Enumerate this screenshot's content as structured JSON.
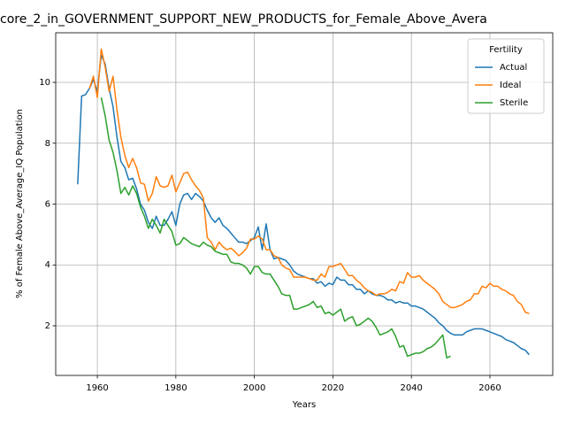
{
  "chart_data": {
    "type": "line",
    "title": "core_2_in_GOVERNMENT_SUPPORT_NEW_PRODUCTS_for_Female_Above_Avera",
    "xlabel": "Years",
    "ylabel": "% of Female Above_Average_IQ Population",
    "legend_title": "Fertility",
    "legend": "upper right",
    "grid": true,
    "xlim": [
      1949.4,
      2076
    ],
    "ylim": [
      0.37,
      11.63
    ],
    "xticks": [
      1960,
      1980,
      2000,
      2020,
      2040,
      2060
    ],
    "yticks": [
      2,
      4,
      6,
      8,
      10
    ],
    "x": [
      1955,
      1956,
      1957,
      1958,
      1959,
      1960,
      1961,
      1962,
      1963,
      1964,
      1965,
      1966,
      1967,
      1968,
      1969,
      1970,
      1971,
      1972,
      1973,
      1974,
      1975,
      1976,
      1977,
      1978,
      1979,
      1980,
      1981,
      1982,
      1983,
      1984,
      1985,
      1986,
      1987,
      1988,
      1989,
      1990,
      1991,
      1992,
      1993,
      1994,
      1995,
      1996,
      1997,
      1998,
      1999,
      2000,
      2001,
      2002,
      2003,
      2004,
      2005,
      2006,
      2007,
      2008,
      2009,
      2010,
      2011,
      2012,
      2013,
      2014,
      2015,
      2016,
      2017,
      2018,
      2019,
      2020,
      2021,
      2022,
      2023,
      2024,
      2025,
      2026,
      2027,
      2028,
      2029,
      2030,
      2031,
      2032,
      2033,
      2034,
      2035,
      2036,
      2037,
      2038,
      2039,
      2040,
      2041,
      2042,
      2043,
      2044,
      2045,
      2046,
      2047,
      2048,
      2049,
      2050,
      2051,
      2052,
      2053,
      2054,
      2055,
      2056,
      2057,
      2058,
      2059,
      2060,
      2061,
      2062,
      2063,
      2064,
      2065,
      2066,
      2067,
      2068,
      2069,
      2070
    ],
    "series": [
      {
        "name": "Actual",
        "color": "#1f77b4",
        "values": [
          6.65,
          9.55,
          9.6,
          9.8,
          10.1,
          9.7,
          10.9,
          10.6,
          9.8,
          9.2,
          8.2,
          7.4,
          7.2,
          6.8,
          6.85,
          6.5,
          6.0,
          5.8,
          5.4,
          5.2,
          5.6,
          5.3,
          5.3,
          5.5,
          5.75,
          5.3,
          6.0,
          6.3,
          6.35,
          6.15,
          6.35,
          6.25,
          6.1,
          5.8,
          5.55,
          5.4,
          5.55,
          5.3,
          5.2,
          5.05,
          4.9,
          4.75,
          4.75,
          4.7,
          4.8,
          4.9,
          5.25,
          4.5,
          5.35,
          4.5,
          4.2,
          4.25,
          4.2,
          4.15,
          4.0,
          3.8,
          3.7,
          3.65,
          3.6,
          3.55,
          3.55,
          3.4,
          3.45,
          3.3,
          3.4,
          3.35,
          3.6,
          3.5,
          3.5,
          3.35,
          3.35,
          3.2,
          3.2,
          3.05,
          3.15,
          3.05,
          3.0,
          3.0,
          2.95,
          2.85,
          2.85,
          2.75,
          2.8,
          2.75,
          2.75,
          2.65,
          2.65,
          2.6,
          2.55,
          2.45,
          2.35,
          2.25,
          2.1,
          2.0,
          1.85,
          1.75,
          1.7,
          1.7,
          1.7,
          1.8,
          1.85,
          1.9,
          1.9,
          1.9,
          1.85,
          1.8,
          1.75,
          1.7,
          1.65,
          1.55,
          1.5,
          1.45,
          1.35,
          1.25,
          1.2,
          1.05
        ]
      },
      {
        "name": "Ideal",
        "color": "#ff7f0e",
        "values": [
          null,
          null,
          null,
          9.8,
          10.2,
          9.5,
          11.1,
          10.5,
          9.7,
          10.2,
          9.1,
          8.2,
          7.6,
          7.2,
          7.5,
          7.2,
          6.7,
          6.65,
          6.1,
          6.35,
          6.9,
          6.6,
          6.55,
          6.6,
          6.95,
          6.4,
          6.7,
          7.0,
          7.05,
          6.8,
          6.6,
          6.45,
          6.2,
          4.9,
          4.75,
          4.5,
          4.75,
          4.6,
          4.5,
          4.55,
          4.45,
          4.3,
          4.4,
          4.55,
          4.85,
          4.85,
          4.95,
          4.85,
          4.5,
          4.5,
          4.3,
          4.25,
          4.0,
          3.9,
          3.85,
          3.6,
          3.6,
          3.6,
          3.6,
          3.55,
          3.5,
          3.5,
          3.7,
          3.6,
          3.95,
          3.95,
          4.0,
          4.05,
          3.85,
          3.65,
          3.65,
          3.5,
          3.4,
          3.25,
          3.15,
          3.1,
          3.0,
          3.05,
          3.05,
          3.1,
          3.2,
          3.15,
          3.45,
          3.4,
          3.75,
          3.6,
          3.6,
          3.65,
          3.5,
          3.4,
          3.3,
          3.2,
          3.05,
          2.8,
          2.7,
          2.6,
          2.6,
          2.65,
          2.7,
          2.8,
          2.85,
          3.05,
          3.05,
          3.3,
          3.25,
          3.4,
          3.3,
          3.3,
          3.2,
          3.15,
          3.05,
          3.0,
          2.8,
          2.7,
          2.45,
          2.4
        ]
      },
      {
        "name": "Sterile",
        "color": "#2ca02c",
        "values": [
          null,
          null,
          null,
          null,
          null,
          null,
          9.5,
          8.9,
          8.1,
          7.7,
          7.1,
          6.35,
          6.55,
          6.3,
          6.6,
          6.35,
          5.9,
          5.6,
          5.2,
          5.5,
          5.3,
          5.05,
          5.5,
          5.3,
          5.1,
          4.65,
          4.7,
          4.9,
          4.8,
          4.7,
          4.65,
          4.6,
          4.75,
          4.65,
          4.6,
          4.45,
          4.4,
          4.35,
          4.35,
          4.1,
          4.05,
          4.05,
          4.0,
          3.9,
          3.7,
          3.95,
          3.95,
          3.75,
          3.7,
          3.7,
          3.5,
          3.3,
          3.05,
          3.0,
          3.0,
          2.55,
          2.55,
          2.6,
          2.65,
          2.7,
          2.8,
          2.6,
          2.65,
          2.4,
          2.45,
          2.35,
          2.45,
          2.55,
          2.15,
          2.25,
          2.3,
          2.0,
          2.05,
          2.15,
          2.25,
          2.15,
          1.95,
          1.7,
          1.75,
          1.8,
          1.9,
          1.65,
          1.3,
          1.35,
          1.0,
          1.05,
          1.1,
          1.1,
          1.15,
          1.25,
          1.3,
          1.4,
          1.55,
          1.7,
          0.95,
          1.0,
          null,
          null,
          null,
          null,
          null,
          null,
          null,
          null,
          null,
          null,
          null,
          null,
          null,
          null,
          null,
          null,
          null,
          null,
          null,
          null
        ]
      }
    ]
  }
}
